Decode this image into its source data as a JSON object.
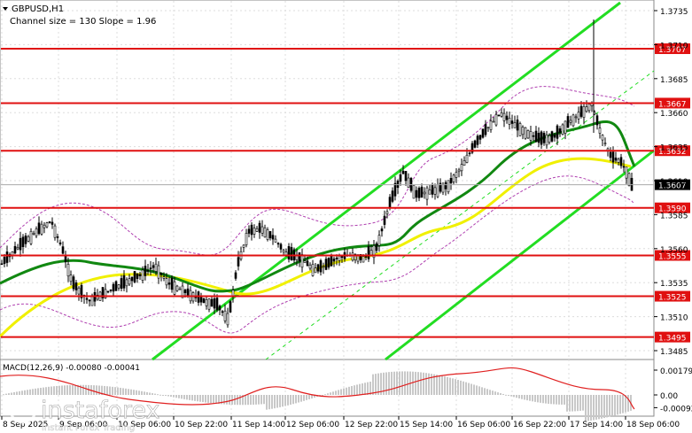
{
  "header": {
    "symbol": "GBPUSD,H1",
    "channel_info": "Channel size = 130 Slope = 1.96"
  },
  "macd_label": "MACD(12,26,9) -0.00080 -0.00041",
  "watermark": {
    "brand": "instaforex",
    "tagline": "Instant Forex Trading"
  },
  "colors": {
    "level_line": "#e01010",
    "price_tag_bg": "#e01010",
    "current_price_bg": "#000000",
    "channel": "#22dd22",
    "ma_fast": "#f0f000",
    "ma_slow": "#118811",
    "bollinger": "#b040b0",
    "macd_hist": "#c8c8c8",
    "macd_signal": "#e02020"
  },
  "chart_data": {
    "type": "line",
    "title": "GBPUSD,H1",
    "ylim": [
      1.3475,
      1.3735
    ],
    "price_ticks": [
      "1.3735",
      "1.3710",
      "1.3685",
      "1.3660",
      "1.3635",
      "1.3610",
      "1.3585",
      "1.3560",
      "1.3535",
      "1.3510",
      "1.3485"
    ],
    "levels": [
      {
        "label": "1.3707",
        "value": 1.3707
      },
      {
        "label": "1.3667",
        "value": 1.3667
      },
      {
        "label": "1.3632",
        "value": 1.3632
      },
      {
        "label": "1.3590",
        "value": 1.359
      },
      {
        "label": "1.3555",
        "value": 1.3555
      },
      {
        "label": "1.3525",
        "value": 1.3525
      },
      {
        "label": "1.3495",
        "value": 1.3495
      }
    ],
    "current_price": {
      "label": "1.3607",
      "value": 1.3607
    },
    "x_labels": [
      "8 Sep 2025",
      "9 Sep 06:00",
      "10 Sep 06:00",
      "10 Sep 22:00",
      "11 Sep 14:00",
      "12 Sep 06:00",
      "12 Sep 22:00",
      "15 Sep 14:00",
      "16 Sep 06:00",
      "16 Sep 22:00",
      "17 Sep 14:00",
      "18 Sep 06:00"
    ],
    "macd_ticks": [
      "0.00179",
      "0.00",
      "-0.00092"
    ],
    "macd_ylim": [
      -0.00092,
      0.00179
    ]
  }
}
